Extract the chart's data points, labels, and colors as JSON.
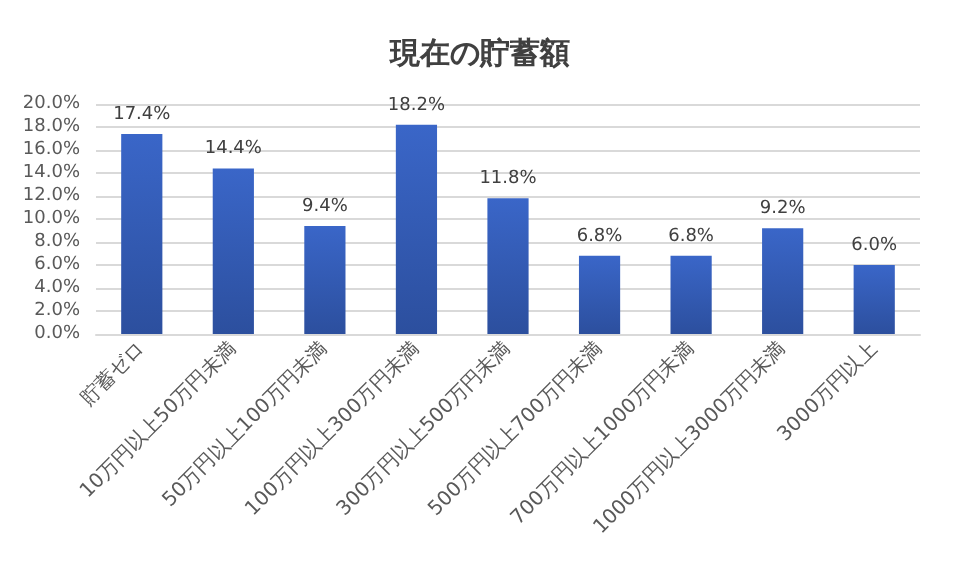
{
  "chart_data": {
    "type": "bar",
    "title": "現在の貯蓄額",
    "categories": [
      "貯蓄ゼロ",
      "10万円以上50万円未満",
      "50万円以上100万円未満",
      "100万円以上300万円未満",
      "300万円以上500万円未満",
      "500万円以上700万円未満",
      "700万円以上1000万円未満",
      "1000万円以上3000万円未満",
      "3000万円以上"
    ],
    "values": [
      17.4,
      14.4,
      9.4,
      18.2,
      11.8,
      6.8,
      6.8,
      9.2,
      6.0
    ],
    "value_labels": [
      "17.4%",
      "14.4%",
      "9.4%",
      "18.2%",
      "11.8%",
      "6.8%",
      "6.8%",
      "9.2%",
      "6.0%"
    ],
    "color": "#3a66c8",
    "ylim": [
      0,
      20
    ],
    "yticks": [
      {
        "value": 0,
        "label": "0.0%"
      },
      {
        "value": 2,
        "label": "2.0%"
      },
      {
        "value": 4,
        "label": "4.0%"
      },
      {
        "value": 6,
        "label": "6.0%"
      },
      {
        "value": 8,
        "label": "8.0%"
      },
      {
        "value": 10,
        "label": "10.0%"
      },
      {
        "value": 12,
        "label": "12.0%"
      },
      {
        "value": 14,
        "label": "14.0%"
      },
      {
        "value": 16,
        "label": "16.0%"
      },
      {
        "value": 18,
        "label": "18.0%"
      },
      {
        "value": 20,
        "label": "20.0%"
      }
    ],
    "grid": "y"
  }
}
